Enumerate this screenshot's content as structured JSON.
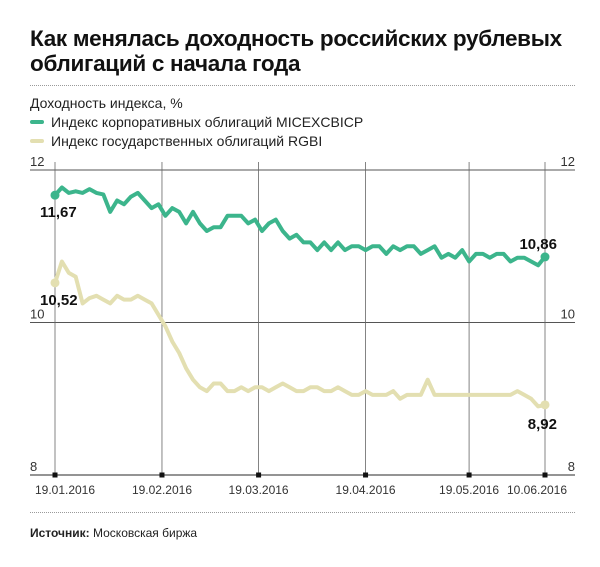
{
  "title": "Как менялась доходность российских рублевых\nоблигаций с начала года",
  "source_label": "Источник:",
  "source_value": "Московская биржа",
  "chart_data": {
    "type": "line",
    "ylabel": "Доходность индекса, %",
    "ylim": [
      8,
      12
    ],
    "yticks": [
      "12",
      "10",
      "8"
    ],
    "xticks": [
      "19.01.2016",
      "19.02.2016",
      "19.03.2016",
      "19.04.2016",
      "19.05.2016",
      "10.06.2016"
    ],
    "grid": true,
    "legend_position": "top-left",
    "series": [
      {
        "name": "Индекс корпоративных облигаций MICEXCBICP",
        "color": "#3cb58c",
        "start_label": "11,67",
        "end_label": "10,86",
        "x": [
          0,
          2,
          4,
          6,
          8,
          10,
          12,
          14,
          16,
          18,
          20,
          22,
          24,
          26,
          28,
          30,
          32,
          34,
          36,
          38,
          40,
          42,
          44,
          46,
          48,
          50,
          52,
          54,
          56,
          58,
          60,
          62,
          64,
          66,
          68,
          70,
          72,
          74,
          76,
          78,
          80,
          82,
          84,
          86,
          88,
          90,
          92,
          94,
          96,
          98,
          100,
          102,
          104,
          106,
          108,
          110,
          112,
          114,
          116,
          118,
          120,
          122,
          124,
          126,
          128,
          130,
          132,
          134,
          136,
          138,
          140,
          142
        ],
        "y": [
          11.67,
          11.77,
          11.7,
          11.72,
          11.7,
          11.75,
          11.7,
          11.68,
          11.45,
          11.6,
          11.55,
          11.65,
          11.7,
          11.6,
          11.5,
          11.55,
          11.4,
          11.5,
          11.45,
          11.3,
          11.45,
          11.3,
          11.2,
          11.25,
          11.25,
          11.4,
          11.4,
          11.4,
          11.3,
          11.35,
          11.2,
          11.3,
          11.35,
          11.2,
          11.1,
          11.15,
          11.05,
          11.05,
          10.95,
          11.05,
          10.95,
          11.05,
          10.95,
          11.0,
          11.0,
          10.95,
          11.0,
          11.0,
          10.9,
          11.0,
          10.95,
          11.0,
          11.0,
          10.9,
          10.95,
          11.0,
          10.85,
          10.9,
          10.85,
          10.95,
          10.8,
          10.9,
          10.9,
          10.85,
          10.9,
          10.9,
          10.8,
          10.85,
          10.85,
          10.8,
          10.75,
          10.86
        ]
      },
      {
        "name": "Индекс государственных облигаций RGBI",
        "color": "#e3dfb1",
        "start_label": "10,52",
        "end_label": "8,92",
        "x": [
          0,
          2,
          4,
          6,
          8,
          10,
          12,
          14,
          16,
          18,
          20,
          22,
          24,
          26,
          28,
          30,
          32,
          34,
          36,
          38,
          40,
          42,
          44,
          46,
          48,
          50,
          52,
          54,
          56,
          58,
          60,
          62,
          64,
          66,
          68,
          70,
          72,
          74,
          76,
          78,
          80,
          82,
          84,
          86,
          88,
          90,
          92,
          94,
          96,
          98,
          100,
          102,
          104,
          106,
          108,
          110,
          112,
          114,
          116,
          118,
          120,
          122,
          124,
          126,
          128,
          130,
          132,
          134,
          136,
          138,
          140,
          142
        ],
        "y": [
          10.52,
          10.8,
          10.65,
          10.6,
          10.25,
          10.32,
          10.35,
          10.3,
          10.25,
          10.35,
          10.3,
          10.3,
          10.35,
          10.3,
          10.25,
          10.1,
          9.95,
          9.75,
          9.6,
          9.4,
          9.25,
          9.15,
          9.1,
          9.2,
          9.2,
          9.1,
          9.1,
          9.15,
          9.1,
          9.15,
          9.15,
          9.1,
          9.15,
          9.2,
          9.15,
          9.1,
          9.1,
          9.15,
          9.15,
          9.1,
          9.1,
          9.15,
          9.1,
          9.05,
          9.05,
          9.1,
          9.05,
          9.05,
          9.05,
          9.1,
          9.0,
          9.05,
          9.05,
          9.05,
          9.25,
          9.05,
          9.05,
          9.05,
          9.05,
          9.05,
          9.05,
          9.05,
          9.05,
          9.05,
          9.05,
          9.05,
          9.05,
          9.1,
          9.05,
          9.0,
          8.9,
          8.92
        ]
      }
    ]
  }
}
